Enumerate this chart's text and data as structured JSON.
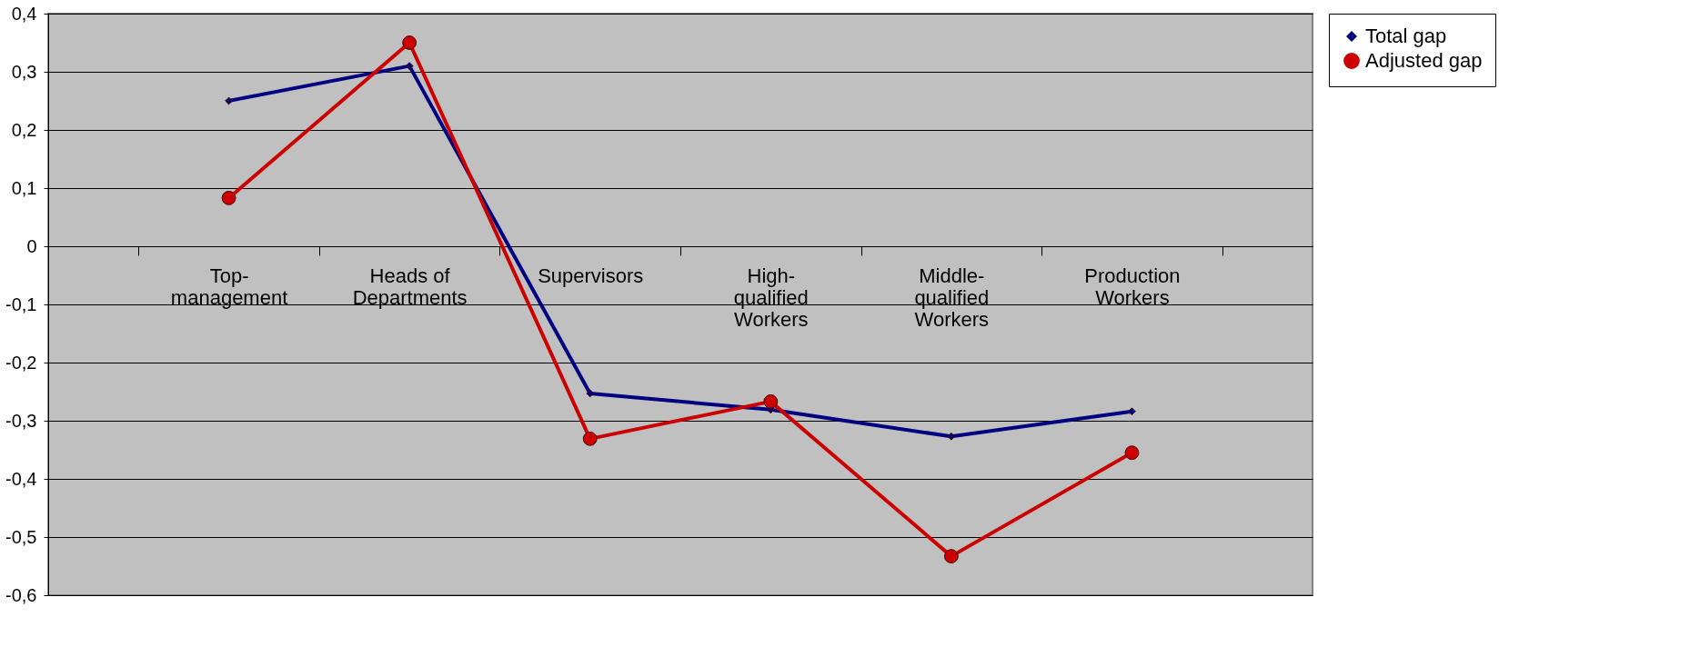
{
  "chart_data": {
    "type": "line",
    "categories": [
      "Top-management",
      "Heads of Departments",
      "Supervisors",
      "High-qualified Workers",
      "Middle-qualified Workers",
      "Production Workers"
    ],
    "series": [
      {
        "name": "Total gap",
        "color": "#000080",
        "marker": "diamond",
        "values": [
          0.25,
          0.31,
          -0.253,
          -0.281,
          -0.327,
          -0.284
        ]
      },
      {
        "name": "Adjusted gap",
        "color": "#cc0000",
        "marker": "circle",
        "values": [
          0.083,
          0.35,
          -0.331,
          -0.267,
          -0.533,
          -0.355
        ]
      }
    ],
    "ylim": [
      -0.6,
      0.4
    ],
    "yticks": [
      {
        "value": -0.6,
        "label": "-0,6"
      },
      {
        "value": -0.5,
        "label": "-0,5"
      },
      {
        "value": -0.4,
        "label": "-0,4"
      },
      {
        "value": -0.3,
        "label": "-0,3"
      },
      {
        "value": -0.2,
        "label": "-0,2"
      },
      {
        "value": -0.1,
        "label": "-0,1"
      },
      0,
      {
        "value": 0.1,
        "label": "0,1"
      },
      {
        "value": 0.2,
        "label": "0,2"
      },
      {
        "value": 0.3,
        "label": "0,3"
      },
      {
        "value": 0.4,
        "label": "0,4"
      }
    ],
    "grid": "y",
    "legend": "right",
    "line_style": "solid"
  }
}
